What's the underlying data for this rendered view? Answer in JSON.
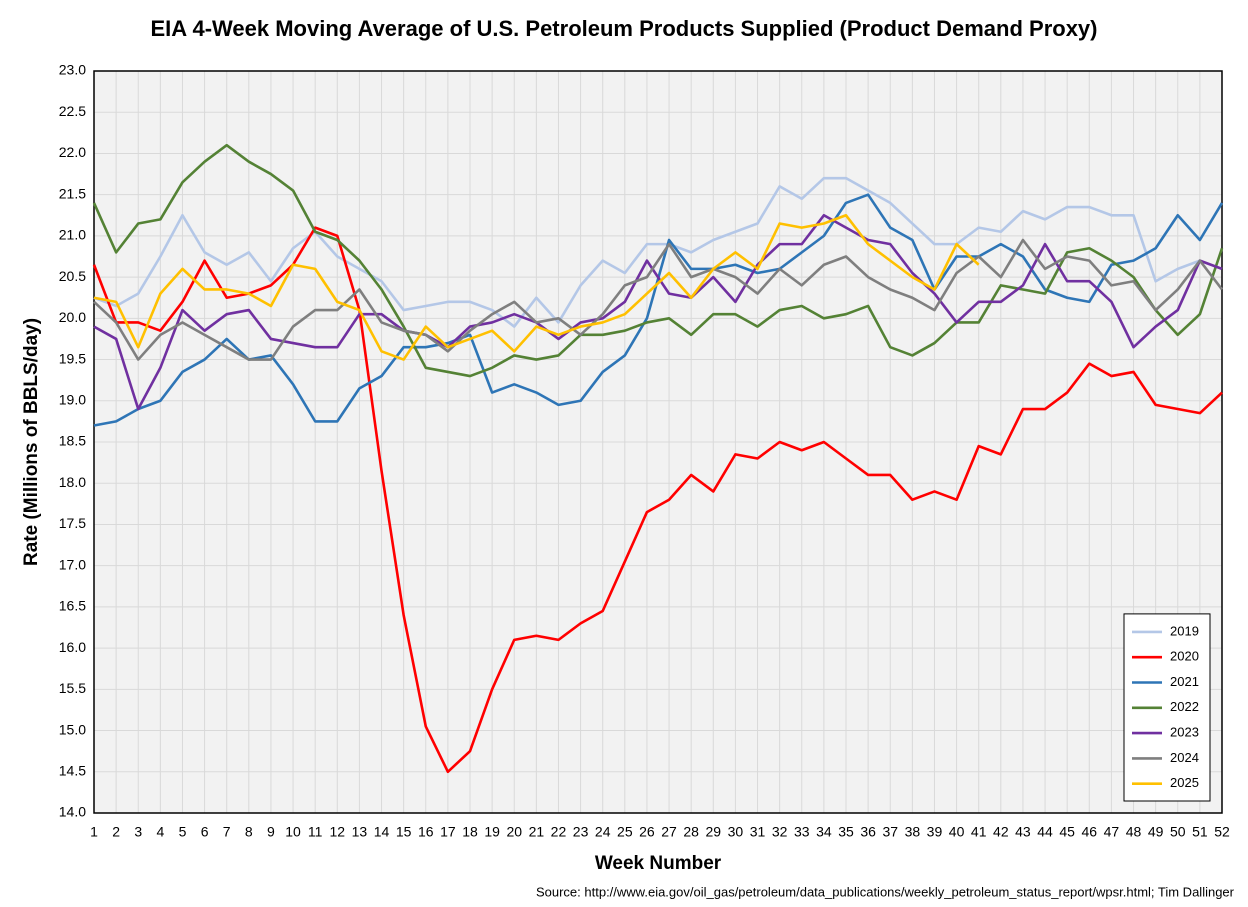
{
  "chart_data": {
    "type": "line",
    "title": "EIA 4-Week Moving Average of U.S. Petroleum Products Supplied (Product Demand Proxy)",
    "x_label": "Week Number",
    "y_label": "Rate (Millions of BBLS/day)",
    "source": "Source: http://www.eia.gov/oil_gas/petroleum/data_publications/weekly_petroleum_status_report/wpsr.html; Tim Dallinger",
    "x": [
      1,
      2,
      3,
      4,
      5,
      6,
      7,
      8,
      9,
      10,
      11,
      12,
      13,
      14,
      15,
      16,
      17,
      18,
      19,
      20,
      21,
      22,
      23,
      24,
      25,
      26,
      27,
      28,
      29,
      30,
      31,
      32,
      33,
      34,
      35,
      36,
      37,
      38,
      39,
      40,
      41,
      42,
      43,
      44,
      45,
      46,
      47,
      48,
      49,
      50,
      51,
      52
    ],
    "xlim": [
      1,
      52
    ],
    "xticks": [
      1,
      2,
      3,
      4,
      5,
      6,
      7,
      8,
      9,
      10,
      11,
      12,
      13,
      14,
      15,
      16,
      17,
      18,
      19,
      20,
      21,
      22,
      23,
      24,
      25,
      26,
      27,
      28,
      29,
      30,
      31,
      32,
      33,
      34,
      35,
      36,
      37,
      38,
      39,
      40,
      41,
      42,
      43,
      44,
      45,
      46,
      47,
      48,
      49,
      50,
      51,
      52
    ],
    "ylim": [
      14,
      23
    ],
    "yticks": [
      {
        "value": 14,
        "label": "14.0"
      },
      {
        "value": 14.5,
        "label": "14.5"
      },
      {
        "value": 15,
        "label": "15.0"
      },
      {
        "value": 15.5,
        "label": "15.5"
      },
      {
        "value": 16,
        "label": "16.0"
      },
      {
        "value": 16.5,
        "label": "16.5"
      },
      {
        "value": 17,
        "label": "17.0"
      },
      {
        "value": 17.5,
        "label": "17.5"
      },
      {
        "value": 18,
        "label": "18.0"
      },
      {
        "value": 18.5,
        "label": "18.5"
      },
      {
        "value": 19,
        "label": "19.0"
      },
      {
        "value": 19.5,
        "label": "19.5"
      },
      {
        "value": 20,
        "label": "20.0"
      },
      {
        "value": 20.5,
        "label": "20.5"
      },
      {
        "value": 21,
        "label": "21.0"
      },
      {
        "value": 21.5,
        "label": "21.5"
      },
      {
        "value": 22,
        "label": "22.0"
      },
      {
        "value": 22.5,
        "label": "22.5"
      },
      {
        "value": 23,
        "label": "23.0"
      }
    ],
    "grid": true,
    "legend": "lower right",
    "series": [
      {
        "name": "2019",
        "color": "#b4c7e7",
        "values": [
          20.25,
          20.15,
          20.3,
          20.75,
          21.25,
          20.8,
          20.65,
          20.8,
          20.45,
          20.85,
          21.05,
          20.75,
          20.6,
          20.45,
          20.1,
          20.15,
          20.2,
          20.2,
          20.1,
          19.9,
          20.25,
          19.95,
          20.4,
          20.7,
          20.55,
          20.9,
          20.9,
          20.8,
          20.95,
          21.05,
          21.15,
          21.6,
          21.45,
          21.7,
          21.7,
          21.55,
          21.4,
          21.15,
          20.9,
          20.9,
          21.1,
          21.05,
          21.3,
          21.2,
          21.35,
          21.35,
          21.25,
          21.25,
          20.45,
          20.6,
          20.7,
          null
        ]
      },
      {
        "name": "2020",
        "color": "#ff0000",
        "values": [
          20.65,
          19.95,
          19.95,
          19.85,
          20.2,
          20.7,
          20.25,
          20.3,
          20.4,
          20.65,
          21.1,
          21.0,
          20.1,
          18.15,
          16.4,
          15.05,
          14.5,
          14.75,
          15.5,
          16.1,
          16.15,
          16.1,
          16.3,
          16.45,
          17.05,
          17.65,
          17.8,
          18.1,
          17.9,
          18.35,
          18.3,
          18.5,
          18.4,
          18.5,
          18.3,
          18.1,
          18.1,
          17.8,
          17.9,
          17.8,
          18.45,
          18.35,
          18.9,
          18.9,
          19.1,
          19.45,
          19.3,
          19.35,
          18.95,
          18.9,
          18.85,
          19.1
        ]
      },
      {
        "name": "2021",
        "color": "#2e75b6",
        "values": [
          18.7,
          18.75,
          18.9,
          19.0,
          19.35,
          19.5,
          19.75,
          19.5,
          19.55,
          19.2,
          18.75,
          18.75,
          19.15,
          19.3,
          19.65,
          19.65,
          19.7,
          19.8,
          19.1,
          19.2,
          19.1,
          18.95,
          19.0,
          19.35,
          19.55,
          20.0,
          20.95,
          20.6,
          20.6,
          20.65,
          20.55,
          20.6,
          20.8,
          21.0,
          21.4,
          21.5,
          21.1,
          20.95,
          20.35,
          20.75,
          20.75,
          20.9,
          20.75,
          20.35,
          20.25,
          20.2,
          20.65,
          20.7,
          20.85,
          21.25,
          20.95,
          21.4
        ]
      },
      {
        "name": "2022",
        "color": "#548235",
        "values": [
          21.4,
          20.8,
          21.15,
          21.2,
          21.65,
          21.9,
          22.1,
          21.9,
          21.75,
          21.55,
          21.05,
          20.95,
          20.7,
          20.35,
          19.9,
          19.4,
          19.35,
          19.3,
          19.4,
          19.55,
          19.5,
          19.55,
          19.8,
          19.8,
          19.85,
          19.95,
          20.0,
          19.8,
          20.05,
          20.05,
          19.9,
          20.1,
          20.15,
          20.0,
          20.05,
          20.15,
          19.65,
          19.55,
          19.7,
          19.95,
          19.95,
          20.4,
          20.35,
          20.3,
          20.8,
          20.85,
          20.7,
          20.5,
          20.1,
          19.8,
          20.05,
          20.85
        ]
      },
      {
        "name": "2023",
        "color": "#7030a0",
        "values": [
          19.9,
          19.75,
          18.9,
          19.4,
          20.1,
          19.85,
          20.05,
          20.1,
          19.75,
          19.7,
          19.65,
          19.65,
          20.05,
          20.05,
          19.85,
          19.8,
          19.65,
          19.9,
          19.95,
          20.05,
          19.95,
          19.75,
          19.95,
          20.0,
          20.2,
          20.7,
          20.3,
          20.25,
          20.5,
          20.2,
          20.65,
          20.9,
          20.9,
          21.25,
          21.1,
          20.95,
          20.9,
          20.55,
          20.3,
          19.95,
          20.2,
          20.2,
          20.4,
          20.9,
          20.45,
          20.45,
          20.2,
          19.65,
          19.9,
          20.1,
          20.7,
          20.6
        ]
      },
      {
        "name": "2024",
        "color": "#7f7f7f",
        "values": [
          20.2,
          19.95,
          19.5,
          19.8,
          19.95,
          19.8,
          19.65,
          19.5,
          19.5,
          19.9,
          20.1,
          20.1,
          20.35,
          19.95,
          19.85,
          19.8,
          19.6,
          19.85,
          20.05,
          20.2,
          19.95,
          20.0,
          19.8,
          20.05,
          20.4,
          20.5,
          20.9,
          20.5,
          20.6,
          20.5,
          20.3,
          20.6,
          20.4,
          20.65,
          20.75,
          20.5,
          20.35,
          20.25,
          20.1,
          20.55,
          20.75,
          20.5,
          20.95,
          20.6,
          20.75,
          20.7,
          20.4,
          20.45,
          20.1,
          20.35,
          20.7,
          20.35
        ]
      },
      {
        "name": "2025",
        "color": "#ffc000",
        "values": [
          20.25,
          20.2,
          19.65,
          20.3,
          20.6,
          20.35,
          20.35,
          20.3,
          20.15,
          20.65,
          20.6,
          20.2,
          20.1,
          19.6,
          19.5,
          19.9,
          19.65,
          19.75,
          19.85,
          19.6,
          19.9,
          19.8,
          19.9,
          19.95,
          20.05,
          20.3,
          20.55,
          20.25,
          20.6,
          20.8,
          20.6,
          21.15,
          21.1,
          21.15,
          21.25,
          20.9,
          20.7,
          20.5,
          20.35,
          20.9,
          20.65,
          null,
          null,
          null,
          null,
          null,
          null,
          null,
          null,
          null,
          null,
          null
        ]
      }
    ]
  }
}
